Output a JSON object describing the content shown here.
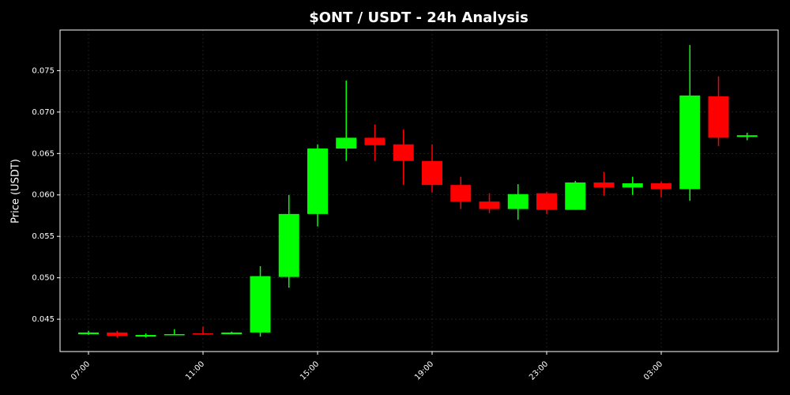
{
  "chart_data": {
    "type": "candlestick",
    "title": "$ONT / USDT - 24h Analysis",
    "y_label": "Price (USDT)",
    "categories": [
      "07:00",
      null,
      null,
      null,
      "11:00",
      null,
      null,
      null,
      "15:00",
      null,
      null,
      null,
      "19:00",
      null,
      null,
      null,
      "23:00",
      null,
      null,
      null,
      "03:00",
      null,
      null,
      null
    ],
    "open": [
      0.0432,
      0.0434,
      0.0429,
      0.0431,
      0.0433,
      0.0432,
      0.0434,
      0.0501,
      0.0577,
      0.0656,
      0.0669,
      0.0661,
      0.0641,
      0.0612,
      0.0592,
      0.0583,
      0.0602,
      0.0582,
      0.0615,
      0.0609,
      0.0614,
      0.0607,
      0.0719,
      0.067
    ],
    "high": [
      0.0436,
      0.0436,
      0.0433,
      0.0438,
      0.0441,
      0.0435,
      0.0514,
      0.06,
      0.0661,
      0.0738,
      0.0685,
      0.0679,
      0.0661,
      0.0622,
      0.0602,
      0.0613,
      0.0604,
      0.0617,
      0.0628,
      0.0622,
      0.0616,
      0.0781,
      0.0743,
      0.0675
    ],
    "low": [
      0.0431,
      0.0428,
      0.0428,
      0.0431,
      0.0431,
      0.0432,
      0.0429,
      0.0488,
      0.0562,
      0.0641,
      0.0641,
      0.0612,
      0.0603,
      0.0583,
      0.0578,
      0.057,
      0.0577,
      0.0582,
      0.0599,
      0.06,
      0.0597,
      0.0593,
      0.0659,
      0.0666
    ],
    "close": [
      0.0434,
      0.043,
      0.0431,
      0.0432,
      0.0432,
      0.0434,
      0.0502,
      0.0577,
      0.0656,
      0.0669,
      0.066,
      0.0641,
      0.0612,
      0.0592,
      0.0583,
      0.0601,
      0.0582,
      0.0615,
      0.0609,
      0.0614,
      0.0607,
      0.072,
      0.0669,
      0.0672
    ],
    "up_color": "#00ff00",
    "down_color": "#ff0000",
    "ylim": [
      0.0411,
      0.0799
    ],
    "yticks": [
      0.045,
      {
        "value": 0.05,
        "label": "0.050"
      },
      0.055,
      {
        "value": 0.06,
        "label": "0.060"
      },
      0.065,
      {
        "value": 0.07,
        "label": "0.070"
      },
      0.075
    ],
    "grid": true
  }
}
